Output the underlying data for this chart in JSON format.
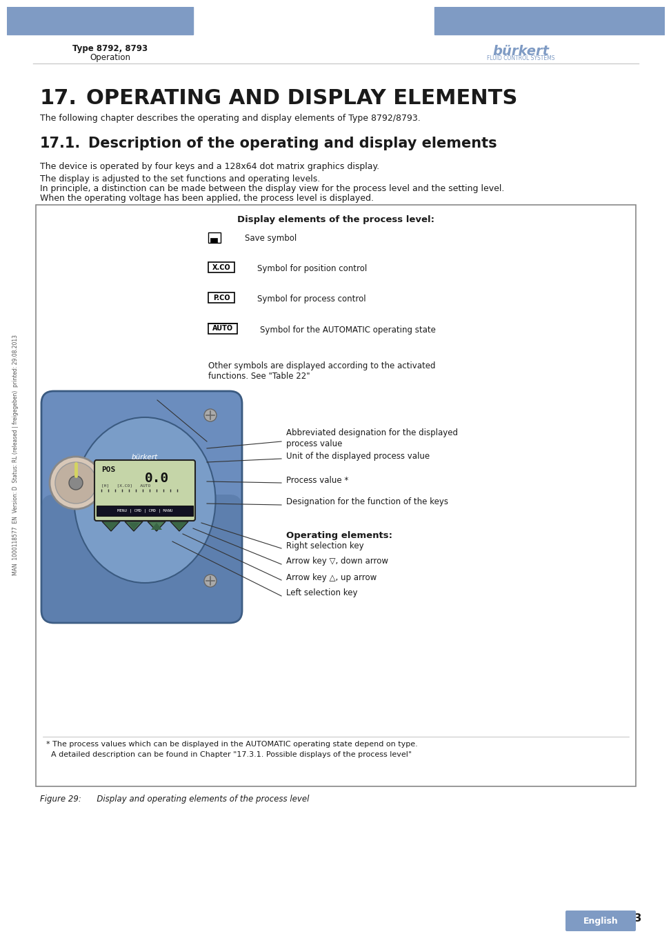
{
  "page_bg": "#ffffff",
  "header_bar_color": "#7f9bc4",
  "header_text_left": "Type 8792, 8793",
  "header_text_center": "Operation",
  "page_number": "63",
  "footer_lang": "English",
  "footer_lang_bg": "#7f9bc4",
  "title_number": "17.",
  "title_text": "OPERATING AND DISPLAY ELEMENTS",
  "subtitle_number": "17.1.",
  "subtitle_text": "Description of the operating and display elements",
  "para1": "The following chapter describes the operating and display elements of Type 8792/8793.",
  "para2": "The device is operated by four keys and a 128x64 dot matrix graphics display.",
  "para3a": "The display is adjusted to the set functions and operating levels.",
  "para3b": "In principle, a distinction can be made between the display view for the process level and the setting level.",
  "para3c": "When the operating voltage has been applied, the process level is displayed.",
  "box_title": "Display elements of the process level:",
  "display_items": [
    "Save symbol",
    "Symbol for position control",
    "Symbol for process control",
    "Symbol for the AUTOMATIC operating state",
    "Other symbols are displayed according to the activated\nfunctions. See \"Table 22\""
  ],
  "right_labels": [
    "Abbreviated designation for the displayed\nprocess value",
    "Unit of the displayed process value",
    "Process value *",
    "Designation for the function of the keys"
  ],
  "operating_title": "Operating elements:",
  "operating_items": [
    "Right selection key",
    "Arrow key ▽, down arrow",
    "Arrow key △, up arrow",
    "Left selection key"
  ],
  "footnote1": "* The process values which can be displayed in the AUTOMATIC operating state depend on type.",
  "footnote2": "  A detailed description can be found in Chapter \"17.3.1. Possible displays of the process level\"",
  "figure_caption": "Figure 29:      Display and operating elements of the process level",
  "side_text": "MAN  1000118577  EN  Version: D  Status: RL (released | freigegeben)  printed: 29.08.2013",
  "line_color": "#cccccc",
  "box_border_color": "#888888",
  "text_color": "#1a1a1a",
  "title_color": "#1a1a1a",
  "device_color": "#6b8dbe",
  "device_edge": "#3a5a80"
}
